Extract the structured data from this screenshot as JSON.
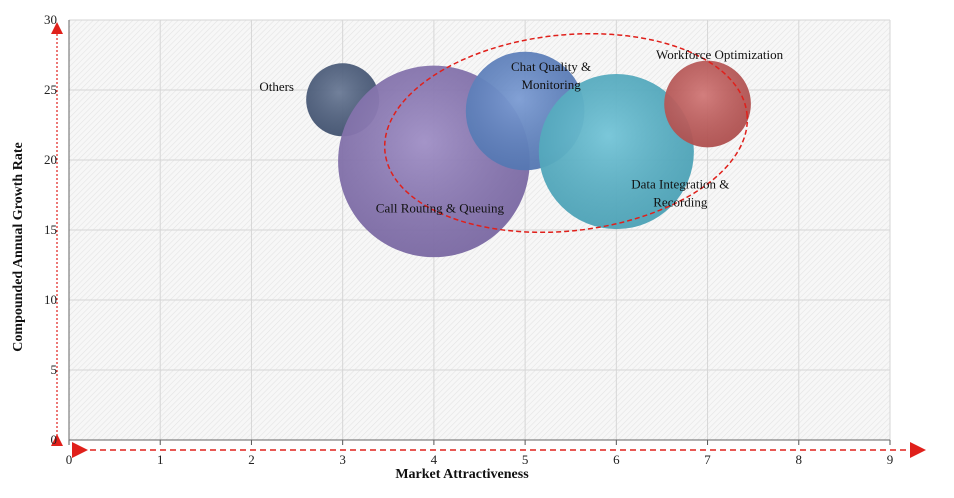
{
  "chart_data": {
    "type": "bubble",
    "xlabel": "Market Attractiveness",
    "ylabel": "Compounded  Annual  Growth Rate",
    "xlim": [
      0,
      9
    ],
    "ylim": [
      0,
      30
    ],
    "x_ticks": [
      "0",
      "1",
      "2",
      "3",
      "4",
      "5",
      "6",
      "7",
      "8",
      "9"
    ],
    "y_ticks": [
      "0",
      "5",
      "10",
      "15",
      "20",
      "25",
      "30"
    ],
    "grid": true,
    "points": [
      {
        "label": "Others",
        "x": 3,
        "y": 24.3,
        "size": 0.8,
        "color": "#4a5d7e"
      },
      {
        "label": "Call Routing & Queuing",
        "x": 4,
        "y": 19.9,
        "size": 2.1,
        "color": "#8a76b8"
      },
      {
        "label": "Chat Quality & Monitoring",
        "x": 5,
        "y": 23.5,
        "size": 1.3,
        "color": "#5f86c9"
      },
      {
        "label": "Data Integration & Recording",
        "x": 6,
        "y": 20.6,
        "size": 1.7,
        "color": "#55b7cf"
      },
      {
        "label": "Workforce Optimization",
        "x": 7,
        "y": 24.0,
        "size": 0.95,
        "color": "#c65a58"
      }
    ],
    "highlight_ellipse": {
      "color": "#e0201b",
      "style": "dashed"
    },
    "axis_arrow_color": "#e0201b"
  }
}
